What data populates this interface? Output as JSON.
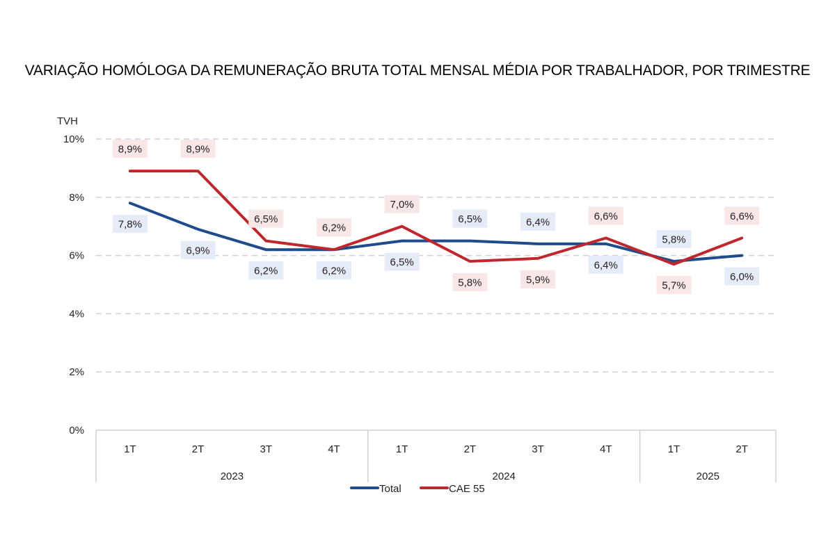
{
  "chart_data": {
    "type": "line",
    "title": "VARIAÇÃO HOMÓLOGA DA REMUNERAÇÃO BRUTA TOTAL MENSAL MÉDIA POR TRABALHADOR, POR TRIMESTRE",
    "ylabel": "TVH",
    "xlabel": "",
    "ylim": [
      0,
      10
    ],
    "yticks": [
      0,
      2,
      4,
      6,
      8,
      10
    ],
    "ytick_labels": [
      "0%",
      "2%",
      "4%",
      "6%",
      "8%",
      "10%"
    ],
    "grid": true,
    "categories": [
      "1T",
      "2T",
      "3T",
      "4T",
      "1T",
      "2T",
      "3T",
      "4T",
      "1T",
      "2T"
    ],
    "groups": [
      {
        "label": "2023",
        "count": 4
      },
      {
        "label": "2024",
        "count": 4
      },
      {
        "label": "2025",
        "count": 2
      }
    ],
    "series": [
      {
        "name": "Total",
        "color": "#1f4a8c",
        "label_bg": "#e6ecf7",
        "values": [
          7.8,
          6.9,
          6.2,
          6.2,
          6.5,
          6.5,
          6.4,
          6.4,
          5.8,
          6.0
        ],
        "labels": [
          "7,8%",
          "6,9%",
          "6,2%",
          "6,2%",
          "6,5%",
          "6,5%",
          "6,4%",
          "6,4%",
          "5,8%",
          "6,0%"
        ],
        "label_pos": [
          "below",
          "below",
          "below",
          "below",
          "below",
          "above",
          "above",
          "below",
          "above",
          "below"
        ]
      },
      {
        "name": "CAE 55",
        "color": "#c0272d",
        "label_bg": "#f9e6e6",
        "values": [
          8.9,
          8.9,
          6.5,
          6.2,
          7.0,
          5.8,
          5.9,
          6.6,
          5.7,
          6.6
        ],
        "labels": [
          "8,9%",
          "8,9%",
          "6,5%",
          "6,2%",
          "7,0%",
          "5,8%",
          "5,9%",
          "6,6%",
          "5,7%",
          "6,6%"
        ],
        "label_pos": [
          "above",
          "above",
          "above",
          "above",
          "above",
          "below",
          "below",
          "above",
          "below",
          "above"
        ]
      }
    ],
    "legend_position": "bottom"
  }
}
